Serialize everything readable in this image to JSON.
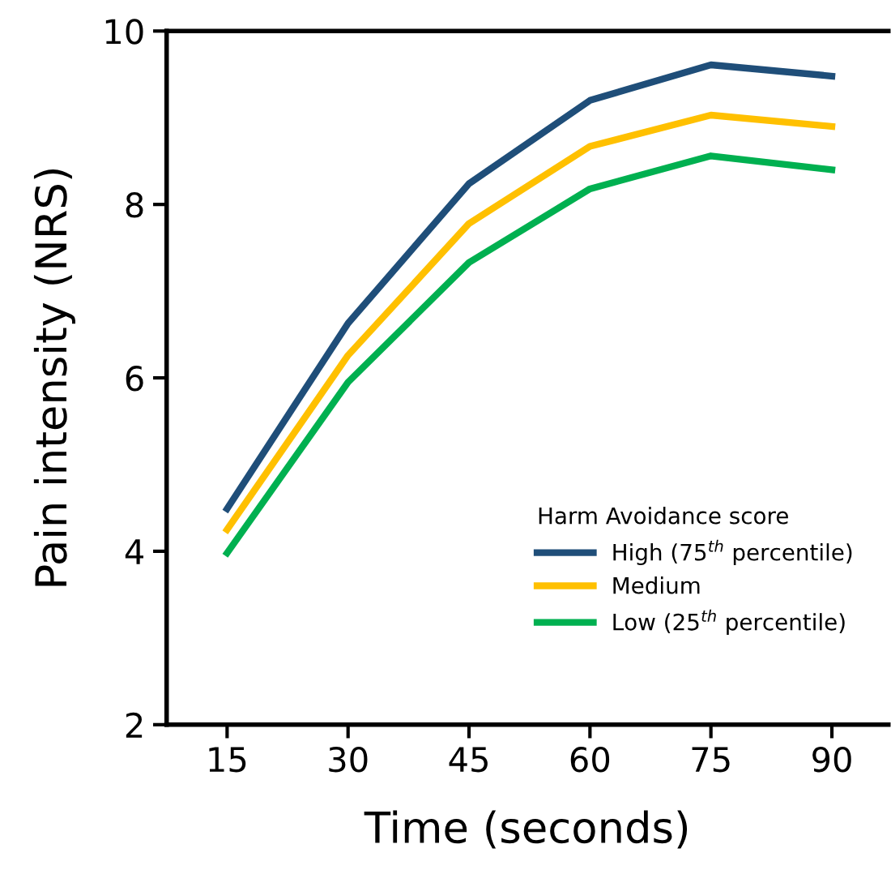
{
  "chart_data": {
    "type": "line",
    "xlabel": "Time (seconds)",
    "ylabel": "Pain intensity (NRS)",
    "legend_title": "Harm Avoidance score",
    "x": [
      15,
      30,
      45,
      60,
      75,
      90
    ],
    "series": [
      {
        "name": "High (75$^{th}$ percentile)",
        "color": "#1f4e79",
        "values": [
          4.49,
          6.63,
          8.24,
          9.2,
          9.61,
          9.48
        ]
      },
      {
        "name": "Medium",
        "color": "#ffc000",
        "values": [
          4.25,
          6.26,
          7.78,
          8.67,
          9.03,
          8.9
        ]
      },
      {
        "name": "Low (25$^{th}$ percentile)",
        "color": "#00b050",
        "values": [
          3.98,
          5.95,
          7.33,
          8.18,
          8.56,
          8.4
        ]
      }
    ],
    "xlim": [
      7.5,
      97
    ],
    "xticks": [
      15,
      30,
      45,
      60,
      75,
      90
    ],
    "ylim": [
      2,
      10
    ],
    "yticks": [
      2,
      4,
      6,
      8,
      10
    ],
    "grid": false,
    "legend": "bottom right",
    "marker": "none",
    "line_style": "solid"
  }
}
